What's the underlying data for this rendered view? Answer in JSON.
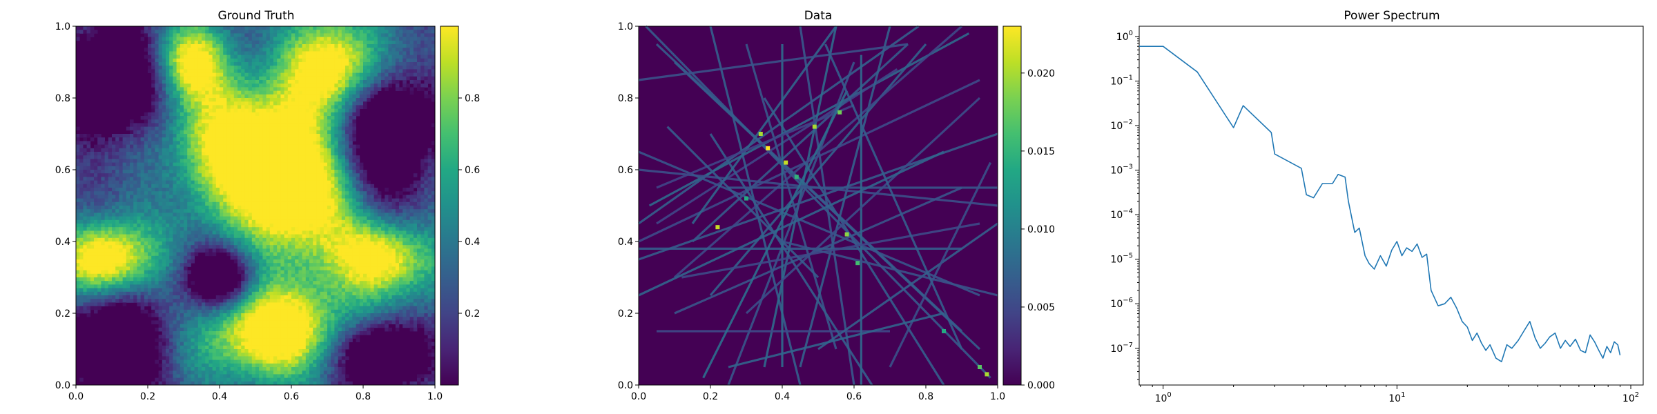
{
  "colors": {
    "viridis_low": "#440154",
    "viridis_high": "#fde725",
    "line": "#1f77b4",
    "axis": "#000000"
  },
  "chart_data": [
    {
      "id": "ground_truth",
      "type": "heatmap",
      "title": "Ground Truth",
      "colormap": "viridis",
      "xlim": [
        0,
        1
      ],
      "ylim": [
        0,
        1
      ],
      "xticks": [
        "0.0",
        "0.2",
        "0.4",
        "0.6",
        "0.8",
        "1.0"
      ],
      "yticks": [
        "0.0",
        "0.2",
        "0.4",
        "0.6",
        "0.8",
        "1.0"
      ],
      "clim": [
        0.0,
        1.0
      ],
      "colorbar_ticks": [
        {
          "v": 0.2,
          "label": "0.2"
        },
        {
          "v": 0.4,
          "label": "0.4"
        },
        {
          "v": 0.6,
          "label": "0.6"
        },
        {
          "v": 0.8,
          "label": "0.8"
        }
      ],
      "high_regions": [
        {
          "cx": 0.45,
          "cy": 0.65,
          "rx": 0.17,
          "ry": 0.16
        },
        {
          "cx": 0.62,
          "cy": 0.55,
          "rx": 0.14,
          "ry": 0.2
        },
        {
          "cx": 0.72,
          "cy": 0.9,
          "rx": 0.13,
          "ry": 0.13
        },
        {
          "cx": 0.85,
          "cy": 0.36,
          "rx": 0.14,
          "ry": 0.1
        },
        {
          "cx": 0.08,
          "cy": 0.35,
          "rx": 0.12,
          "ry": 0.1
        },
        {
          "cx": 0.55,
          "cy": 0.15,
          "rx": 0.18,
          "ry": 0.13
        },
        {
          "cx": 0.32,
          "cy": 0.9,
          "rx": 0.1,
          "ry": 0.1
        }
      ],
      "low_regions": [
        {
          "cx": 0.1,
          "cy": 0.85,
          "rx": 0.15,
          "ry": 0.18
        },
        {
          "cx": 0.87,
          "cy": 0.7,
          "rx": 0.13,
          "ry": 0.2
        },
        {
          "cx": 0.1,
          "cy": 0.1,
          "rx": 0.15,
          "ry": 0.14
        },
        {
          "cx": 0.4,
          "cy": 0.3,
          "rx": 0.09,
          "ry": 0.08
        },
        {
          "cx": 0.85,
          "cy": 0.08,
          "rx": 0.12,
          "ry": 0.1
        }
      ]
    },
    {
      "id": "data",
      "type": "heatmap",
      "title": "Data",
      "colormap": "viridis",
      "xlim": [
        0,
        1
      ],
      "ylim": [
        0,
        1
      ],
      "xticks": [
        "0.0",
        "0.2",
        "0.4",
        "0.6",
        "0.8",
        "1.0"
      ],
      "yticks": [
        "0.0",
        "0.2",
        "0.4",
        "0.6",
        "0.8",
        "1.0"
      ],
      "clim": [
        0.0,
        0.023
      ],
      "colorbar_ticks": [
        {
          "v": 0.0,
          "label": "0.000"
        },
        {
          "v": 0.005,
          "label": "0.005"
        },
        {
          "v": 0.01,
          "label": "0.010"
        },
        {
          "v": 0.015,
          "label": "0.015"
        },
        {
          "v": 0.02,
          "label": "0.020"
        }
      ],
      "rays": [
        [
          0.02,
          1.0,
          0.98,
          0.02
        ],
        [
          0.05,
          0.95,
          0.9,
          0.15
        ],
        [
          0.1,
          0.9,
          0.95,
          0.1
        ],
        [
          0.0,
          0.45,
          0.78,
          1.0
        ],
        [
          0.03,
          0.5,
          0.92,
          0.98
        ],
        [
          0.0,
          0.35,
          1.0,
          0.7
        ],
        [
          0.05,
          0.45,
          0.72,
          0.88
        ],
        [
          0.15,
          0.4,
          0.75,
          0.95
        ],
        [
          0.2,
          1.0,
          0.45,
          0.0
        ],
        [
          0.3,
          0.95,
          0.55,
          0.1
        ],
        [
          0.45,
          1.0,
          0.6,
          0.0
        ],
        [
          0.55,
          1.0,
          0.35,
          0.05
        ],
        [
          0.6,
          0.9,
          0.25,
          0.0
        ],
        [
          0.7,
          1.0,
          0.45,
          0.05
        ],
        [
          0.8,
          0.95,
          0.2,
          0.25
        ],
        [
          0.9,
          1.0,
          0.1,
          0.3
        ],
        [
          0.95,
          0.85,
          0.0,
          0.4
        ],
        [
          0.0,
          0.6,
          1.0,
          0.5
        ],
        [
          0.0,
          0.65,
          0.95,
          0.25
        ],
        [
          0.1,
          0.2,
          0.9,
          0.55
        ],
        [
          0.0,
          0.38,
          0.9,
          0.38
        ],
        [
          0.05,
          0.15,
          0.7,
          0.15
        ],
        [
          0.2,
          0.7,
          0.65,
          0.0
        ],
        [
          0.35,
          0.8,
          0.85,
          0.0
        ],
        [
          0.25,
          0.55,
          1.0,
          0.55
        ],
        [
          0.4,
          0.95,
          0.4,
          0.05
        ],
        [
          0.62,
          0.92,
          0.62,
          0.0
        ],
        [
          0.15,
          0.45,
          0.55,
          1.0
        ],
        [
          0.0,
          0.85,
          0.75,
          0.95
        ],
        [
          0.5,
          0.1,
          1.0,
          0.45
        ],
        [
          0.3,
          0.2,
          0.95,
          0.8
        ],
        [
          0.05,
          0.55,
          0.6,
          0.78
        ],
        [
          0.0,
          0.25,
          0.85,
          0.65
        ],
        [
          0.18,
          0.02,
          0.58,
          0.82
        ],
        [
          0.7,
          0.05,
          0.98,
          0.62
        ],
        [
          0.12,
          0.3,
          0.95,
          0.45
        ],
        [
          0.25,
          0.05,
          0.85,
          0.2
        ],
        [
          0.4,
          0.4,
          1.0,
          0.25
        ],
        [
          0.08,
          0.72,
          0.5,
          0.3
        ],
        [
          0.52,
          0.95,
          0.9,
          0.1
        ]
      ],
      "hot_spots": [
        {
          "x": 0.36,
          "y": 0.66,
          "v": 0.023
        },
        {
          "x": 0.41,
          "y": 0.62,
          "v": 0.021
        },
        {
          "x": 0.49,
          "y": 0.72,
          "v": 0.02
        },
        {
          "x": 0.34,
          "y": 0.7,
          "v": 0.02
        },
        {
          "x": 0.22,
          "y": 0.44,
          "v": 0.021
        },
        {
          "x": 0.58,
          "y": 0.42,
          "v": 0.019
        },
        {
          "x": 0.56,
          "y": 0.76,
          "v": 0.018
        },
        {
          "x": 0.97,
          "y": 0.03,
          "v": 0.02
        },
        {
          "x": 0.95,
          "y": 0.05,
          "v": 0.017
        },
        {
          "x": 0.61,
          "y": 0.34,
          "v": 0.016
        },
        {
          "x": 0.44,
          "y": 0.58,
          "v": 0.015
        },
        {
          "x": 0.3,
          "y": 0.52,
          "v": 0.014
        },
        {
          "x": 0.85,
          "y": 0.15,
          "v": 0.014
        }
      ]
    },
    {
      "id": "power_spectrum",
      "type": "line",
      "title": "Power Spectrum",
      "xscale": "log",
      "yscale": "log",
      "xlim": [
        0.79,
        113
      ],
      "ylim": [
        1.5e-08,
        1.7
      ],
      "xticks": [
        {
          "v": 1,
          "base": "10",
          "exp": "0"
        },
        {
          "v": 10,
          "base": "10",
          "exp": "1"
        },
        {
          "v": 100,
          "base": "10",
          "exp": "2"
        }
      ],
      "yticks": [
        {
          "v": 1e-07,
          "base": "10",
          "exp": "−7"
        },
        {
          "v": 1e-06,
          "base": "10",
          "exp": "−6"
        },
        {
          "v": 1e-05,
          "base": "10",
          "exp": "−5"
        },
        {
          "v": 0.0001,
          "base": "10",
          "exp": "−4"
        },
        {
          "v": 0.001,
          "base": "10",
          "exp": "−3"
        },
        {
          "v": 0.01,
          "base": "10",
          "exp": "−2"
        },
        {
          "v": 0.1,
          "base": "10",
          "exp": "−1"
        },
        {
          "v": 1,
          "base": "10",
          "exp": "0"
        }
      ],
      "series": [
        {
          "x": [
            0.79,
            1.0,
            1.4,
            2.0,
            2.2,
            2.9,
            3.0,
            3.9,
            4.1,
            4.4,
            4.8,
            5.3,
            5.6,
            6.0,
            6.2,
            6.6,
            6.9,
            7.3,
            7.6,
            8.0,
            8.5,
            9.0,
            9.5,
            10.0,
            10.5,
            11.0,
            11.6,
            12.2,
            12.8,
            13.4,
            14.0,
            15.0,
            16.0,
            17.0,
            18.0,
            19.0,
            20.0,
            21.0,
            22.0,
            23.0,
            24.0,
            25.0,
            26.5,
            28.0,
            29.5,
            31.0,
            33.0,
            35.0,
            37.0,
            39.0,
            41.0,
            43.0,
            45.0,
            47.5,
            50.0,
            52.5,
            55.0,
            58.0,
            61.0,
            64.0,
            67.0,
            70.0,
            73.0,
            76.0,
            79.0,
            82.0,
            85.0,
            88.0,
            90.0
          ],
          "values": [
            0.6,
            0.6,
            0.16,
            0.009,
            0.028,
            0.007,
            0.0023,
            0.0011,
            0.00028,
            0.00024,
            0.0005,
            0.0005,
            0.0008,
            0.0007,
            0.0002,
            4e-05,
            5e-05,
            1.2e-05,
            8e-06,
            6e-06,
            1.2e-05,
            7e-06,
            1.6e-05,
            2.5e-05,
            1.2e-05,
            1.8e-05,
            1.5e-05,
            2.2e-05,
            1.1e-05,
            1.3e-05,
            2e-06,
            9e-07,
            1e-06,
            1.4e-06,
            8e-07,
            4e-07,
            3e-07,
            1.5e-07,
            2.2e-07,
            1.3e-07,
            9e-08,
            1.2e-07,
            6e-08,
            5e-08,
            1.2e-07,
            1e-07,
            1.5e-07,
            2.5e-07,
            4e-07,
            1.7e-07,
            1e-07,
            1.3e-07,
            1.8e-07,
            2.2e-07,
            1e-07,
            1.5e-07,
            1.1e-07,
            1.6e-07,
            9e-08,
            8e-08,
            2e-07,
            1.4e-07,
            9e-08,
            6e-08,
            1.1e-07,
            8e-08,
            1.4e-07,
            1.2e-07,
            7e-08
          ]
        }
      ]
    }
  ]
}
